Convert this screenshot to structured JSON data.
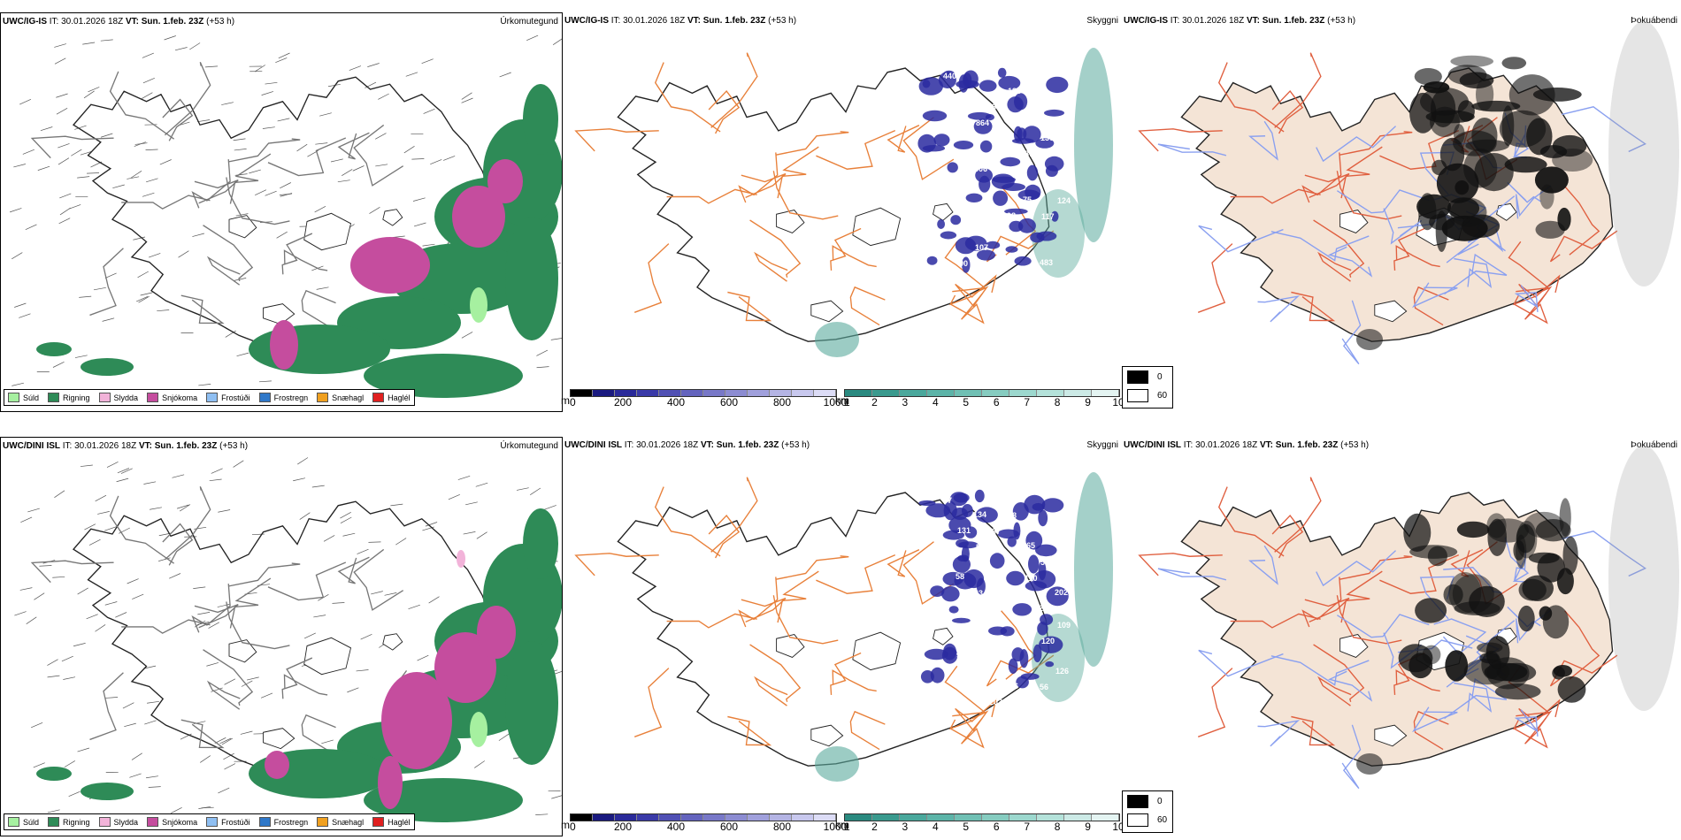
{
  "rows": [
    {
      "model": "UWC/IG-IS",
      "it_label": "IT:",
      "it_value": "30.01.2026 18Z",
      "vt_label": "VT:",
      "vt_value": "Sun. 1.feb. 23Z",
      "lead": "(+53 h)",
      "cloud_labels": [
        "440",
        "864",
        "96",
        "117",
        "90",
        "86",
        "87",
        "124",
        "107",
        "136",
        "130",
        "265",
        "192",
        "128",
        "298",
        "306",
        "98",
        "483",
        "334",
        "287",
        "75"
      ],
      "fog_blobs": "ig"
    },
    {
      "model": "UWC/DINI ISL",
      "it_label": "IT:",
      "it_value": "30.01.2026 18Z",
      "vt_label": "VT:",
      "vt_value": "Sun. 1.feb. 23Z",
      "lead": "(+53 h)",
      "cloud_labels": [
        "87",
        "58",
        "50",
        "120",
        "68",
        "67",
        "110",
        "109",
        "77",
        "68",
        "56",
        "90",
        "106",
        "66",
        "76",
        "63",
        "55",
        "56",
        "131",
        "108",
        "95",
        "126",
        "134",
        "83",
        "223",
        "97",
        "203",
        "365",
        "202",
        "304",
        "316",
        "245",
        "58"
      ],
      "fog_blobs": "dini"
    }
  ],
  "panel_names": {
    "precip": "Úrkomutegund",
    "cloud": "Skyggni",
    "fog": "Þokuábendi"
  },
  "precip_legend": [
    {
      "label": "Súld",
      "color": "#a6f0a0"
    },
    {
      "label": "Rigning",
      "color": "#2e8b57"
    },
    {
      "label": "Slydda",
      "color": "#f2b3d9"
    },
    {
      "label": "Snjókoma",
      "color": "#c54d9e"
    },
    {
      "label": "Frostúði",
      "color": "#8fbff2"
    },
    {
      "label": "Frostregn",
      "color": "#2f78c9"
    },
    {
      "label": "Snæhagl",
      "color": "#f0a020"
    },
    {
      "label": "Haglél",
      "color": "#e02020"
    }
  ],
  "cloud_base_bar": {
    "unit": "m",
    "ticks": [
      "0",
      "200",
      "400",
      "600",
      "800",
      "1000"
    ],
    "colors": [
      "#000000",
      "#1a1a80",
      "#2a2a9a",
      "#3a3aa8",
      "#5050b4",
      "#6464be",
      "#7878c8",
      "#8c8cd2",
      "#a0a0dc",
      "#b4b4e4",
      "#c8c8ee",
      "#dcdcf6"
    ]
  },
  "visibility_bar": {
    "unit": "km",
    "ticks": [
      "1",
      "2",
      "3",
      "4",
      "5",
      "6",
      "7",
      "8",
      "9",
      "10"
    ],
    "colors": [
      "#2a8a80",
      "#3a9a8e",
      "#4aa89c",
      "#5cb4a8",
      "#70c0b4",
      "#86ccc0",
      "#9cd8ce",
      "#b4e2da",
      "#cceae6",
      "#e4f4f2"
    ]
  },
  "fog_legend": [
    {
      "label": "0",
      "color": "#000000"
    },
    {
      "label": "60",
      "color": "#ffffff"
    }
  ],
  "colors": {
    "rain": "#2e8b57",
    "drizzle": "#a6f0a0",
    "snow": "#c54d9e",
    "sleet": "#f2b3d9",
    "land_fog": "#f4e4d6",
    "roads": "#e8803a",
    "roads_fog": "#e06040",
    "cloud_blue": "#2a2aa0",
    "cloud_teal": "#5aaa9c",
    "rivers": "#8aa0f0"
  }
}
